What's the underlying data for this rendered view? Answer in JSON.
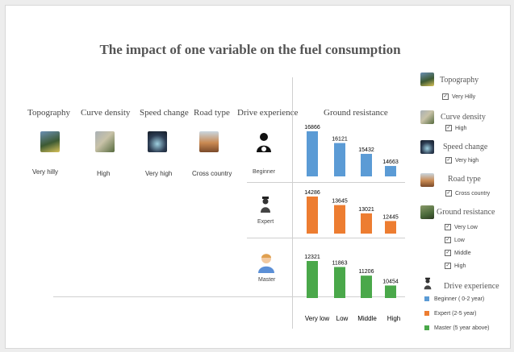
{
  "chart_data": {
    "type": "bar",
    "title": "The impact of one variable on the fuel consumption",
    "variable_headers": [
      "Topography",
      "Curve density",
      "Speed change",
      "Road type",
      "Drive experience"
    ],
    "variable_values": [
      "Very hilly",
      "High",
      "Very high",
      "Cross country"
    ],
    "chart_header": "Ground resistance",
    "categories": [
      "Very low",
      "Low",
      "Middle",
      "High"
    ],
    "series": [
      {
        "name": "Beginner",
        "color": "#5b9bd5",
        "values": [
          16866,
          16121,
          15432,
          14663
        ],
        "labels": [
          "16866",
          "16121",
          "15432",
          "14663"
        ]
      },
      {
        "name": "Expert",
        "color": "#ed7d31",
        "values": [
          14286,
          13645,
          13021,
          12445
        ],
        "labels": [
          "14286",
          "13645",
          "13021",
          "12445"
        ]
      },
      {
        "name": "Master",
        "color": "#4aa84a",
        "values": [
          12321,
          11863,
          11206,
          10454
        ],
        "labels": [
          "12321",
          "11863",
          "11206",
          "10454"
        ]
      }
    ]
  },
  "legend": {
    "topography": {
      "head": "Topography",
      "item": "Very Hilly"
    },
    "curve_density": {
      "head": "Curve density",
      "item": "High"
    },
    "speed_change": {
      "head": "Speed change",
      "item": "Very high"
    },
    "road_type": {
      "head": "Road type",
      "item": "Cross country"
    },
    "ground_resistance": {
      "head": "Ground resistance",
      "items": [
        "Very Low",
        "Low",
        "Middle",
        "High"
      ]
    },
    "drive_experience": {
      "head": "Drive experience",
      "items": [
        "Beginner ( 0-2 year)",
        "Expert (2-5 year)",
        "Master (5 year above)"
      ]
    }
  },
  "icons": {
    "topography": "hilly-road-icon",
    "curve_density": "curvy-road-icon",
    "speed_change": "speedometer-icon",
    "road_type": "cross-country-road-icon",
    "beginner": "driver-icon",
    "expert": "driver-icon",
    "master": "driver-icon"
  }
}
